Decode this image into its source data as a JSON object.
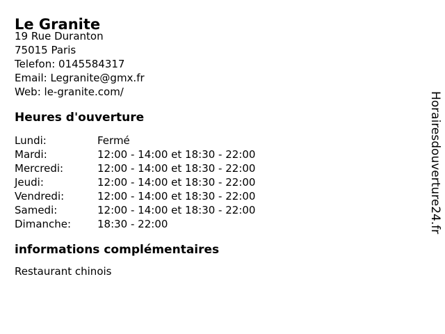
{
  "business": {
    "name": "Le Granite",
    "address_line1": "19 Rue Duranton",
    "address_line2": "75015 Paris",
    "phone_line": "Telefon: 0145584317",
    "email_line": "Email: Legranite@gmx.fr",
    "web_line": "Web: le-granite.com/"
  },
  "hours": {
    "heading": "Heures d'ouverture",
    "rows": [
      {
        "day": "Lundi:",
        "times": "Fermé"
      },
      {
        "day": "Mardi:",
        "times": "12:00 - 14:00 et 18:30 - 22:00"
      },
      {
        "day": "Mercredi:",
        "times": "12:00 - 14:00 et 18:30 - 22:00"
      },
      {
        "day": "Jeudi:",
        "times": "12:00 - 14:00 et 18:30 - 22:00"
      },
      {
        "day": "Vendredi:",
        "times": "12:00 - 14:00 et 18:30 - 22:00"
      },
      {
        "day": "Samedi:",
        "times": "12:00 - 14:00 et 18:30 - 22:00"
      },
      {
        "day": "Dimanche:",
        "times": "18:30 - 22:00"
      }
    ]
  },
  "info": {
    "heading": "informations complémentaires",
    "text": "Restaurant chinois"
  },
  "watermark": "Horairesdouverture24.fr",
  "colors": {
    "text": "#000000",
    "background": "#ffffff"
  }
}
